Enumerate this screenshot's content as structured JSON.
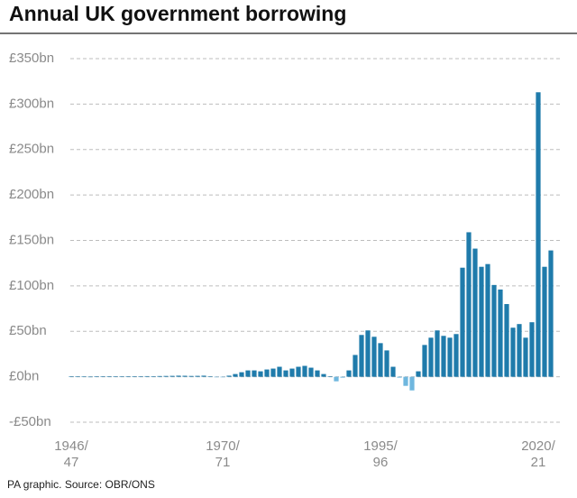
{
  "chart_data": {
    "type": "bar",
    "title": "Annual UK government borrowing",
    "source": "PA graphic. Source: OBR/ONS",
    "categories": [
      "1946/47",
      null,
      null,
      null,
      null,
      null,
      null,
      null,
      null,
      null,
      null,
      null,
      null,
      null,
      null,
      null,
      null,
      null,
      null,
      null,
      null,
      null,
      null,
      null,
      "1970/71",
      null,
      null,
      null,
      null,
      null,
      null,
      null,
      null,
      null,
      null,
      null,
      null,
      null,
      null,
      null,
      null,
      null,
      null,
      null,
      null,
      null,
      null,
      null,
      null,
      "1995/96",
      null,
      null,
      null,
      null,
      null,
      null,
      null,
      null,
      null,
      null,
      null,
      null,
      null,
      null,
      null,
      null,
      null,
      null,
      null,
      null,
      null,
      null,
      null,
      null,
      "2020/21",
      null,
      null
    ],
    "values": [
      0.5,
      0.3,
      0.2,
      0.1,
      0.4,
      0.5,
      0.6,
      0.4,
      0.3,
      0.5,
      0.6,
      0.5,
      0.7,
      0.6,
      0.8,
      0.9,
      1.0,
      1.2,
      1.1,
      0.9,
      1.0,
      1.2,
      0.3,
      -0.5,
      -0.6,
      1.2,
      3,
      5,
      7,
      7,
      6,
      8,
      9,
      11,
      7,
      9,
      11,
      12,
      10,
      7,
      3,
      0.5,
      -5,
      -1,
      7,
      24,
      46,
      51,
      44,
      37,
      29,
      11,
      -1,
      -10,
      -15,
      6,
      35,
      43,
      51,
      45,
      43,
      47,
      120,
      159,
      141,
      121,
      124,
      101,
      96,
      80,
      54,
      58,
      43,
      60,
      313,
      121,
      139
    ],
    "color": "#1f7bab",
    "negative_color": "#6fb7de",
    "ylim": [
      -50,
      350
    ],
    "yticks": [
      {
        "value": -50,
        "label": "-£50bn"
      },
      {
        "value": 0,
        "label": "£0bn"
      },
      {
        "value": 50,
        "label": "£50bn"
      },
      {
        "value": 100,
        "label": "£100bn"
      },
      {
        "value": 150,
        "label": "£150bn"
      },
      {
        "value": 200,
        "label": "£200bn"
      },
      {
        "value": 250,
        "label": "£250bn"
      },
      {
        "value": 300,
        "label": "£300bn"
      },
      {
        "value": 350,
        "label": "£350bn"
      }
    ],
    "grid": true
  }
}
